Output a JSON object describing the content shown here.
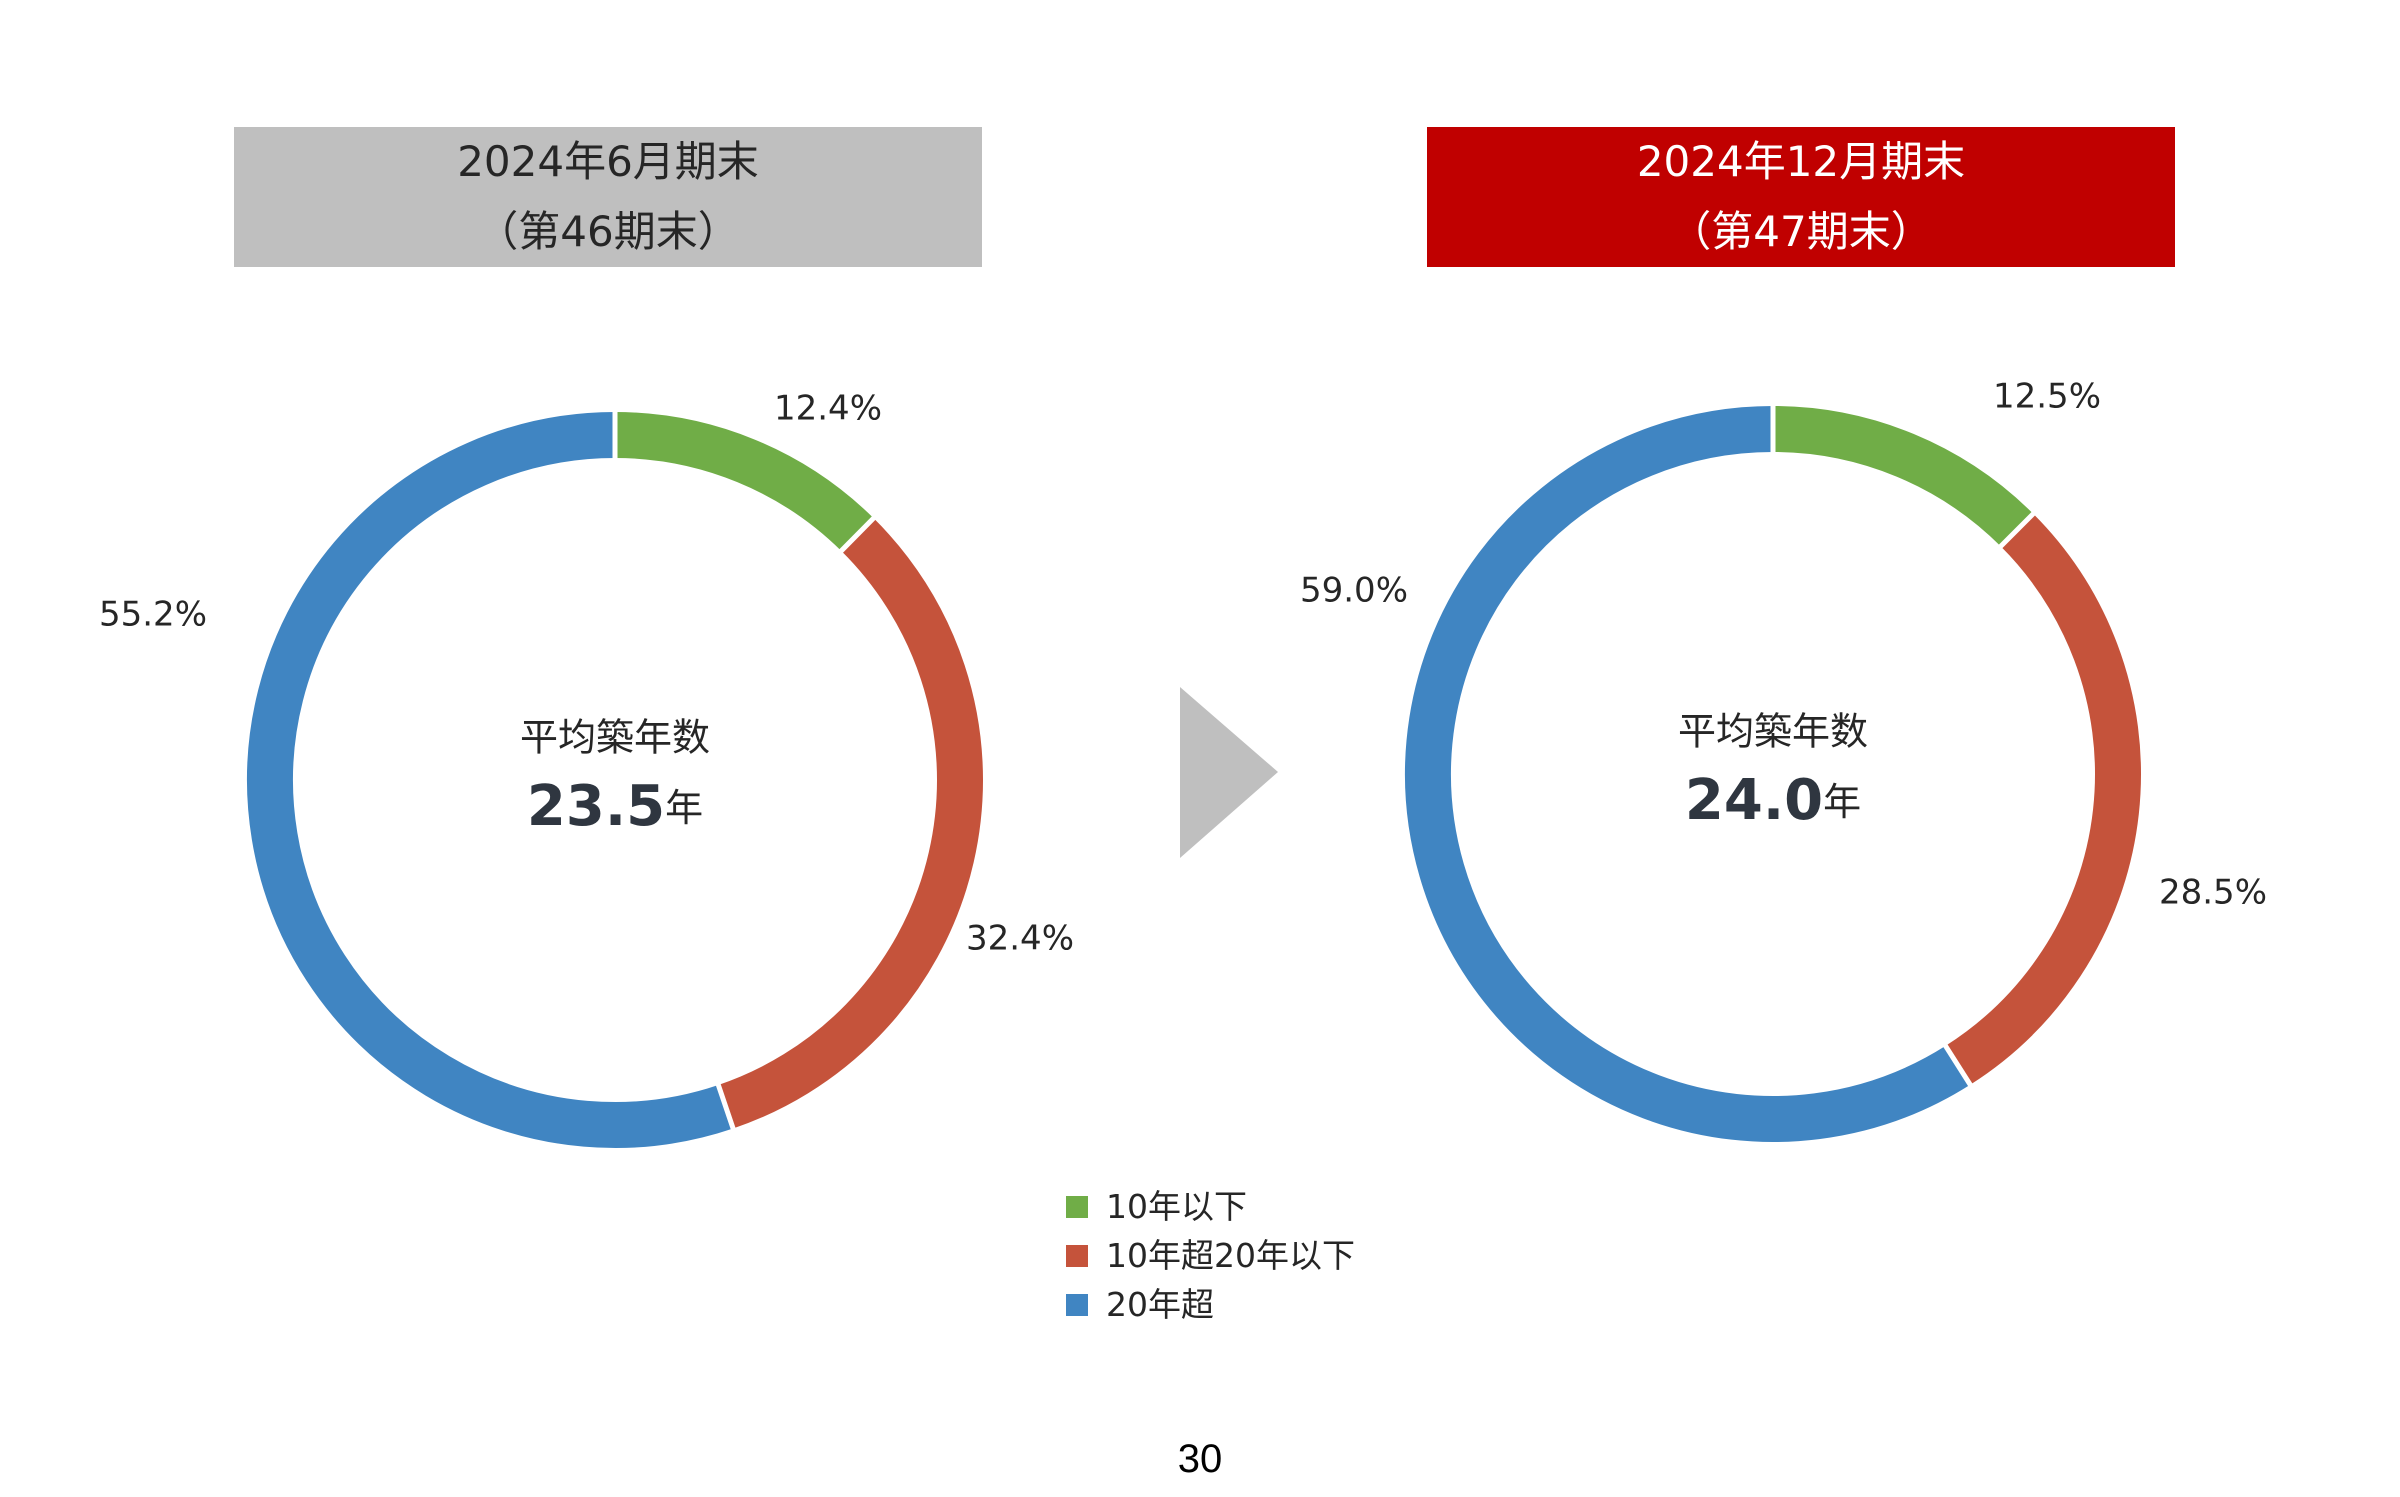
{
  "headers": {
    "left": {
      "line1": "2024年6月期末",
      "line2": "（第46期末）",
      "color": "#bfbfbf"
    },
    "right": {
      "line1": "2024年12月期末",
      "line2": "（第47期末）",
      "color": "#c00000"
    }
  },
  "legend": [
    {
      "label": "10年以下",
      "color": "#70ad47"
    },
    {
      "label": "10年超20年以下",
      "color": "#c5533b"
    },
    {
      "label": "20年超",
      "color": "#4085c2"
    }
  ],
  "chart_data": [
    {
      "type": "pie",
      "categories": [
        "10年以下",
        "10年超20年以下",
        "20年超"
      ],
      "values": [
        12.4,
        32.4,
        55.2
      ],
      "labels": [
        "12.4%",
        "32.4%",
        "55.2%"
      ],
      "center_caption": "平均築年数",
      "center_value": "23.5",
      "center_unit": "年"
    },
    {
      "type": "pie",
      "categories": [
        "10年以下",
        "10年超20年以下",
        "20年超"
      ],
      "values": [
        12.5,
        28.5,
        59.0
      ],
      "labels": [
        "12.5%",
        "28.5%",
        "59.0%"
      ],
      "center_caption": "平均築年数",
      "center_value": "24.0",
      "center_unit": "年"
    }
  ],
  "page_number": "30"
}
